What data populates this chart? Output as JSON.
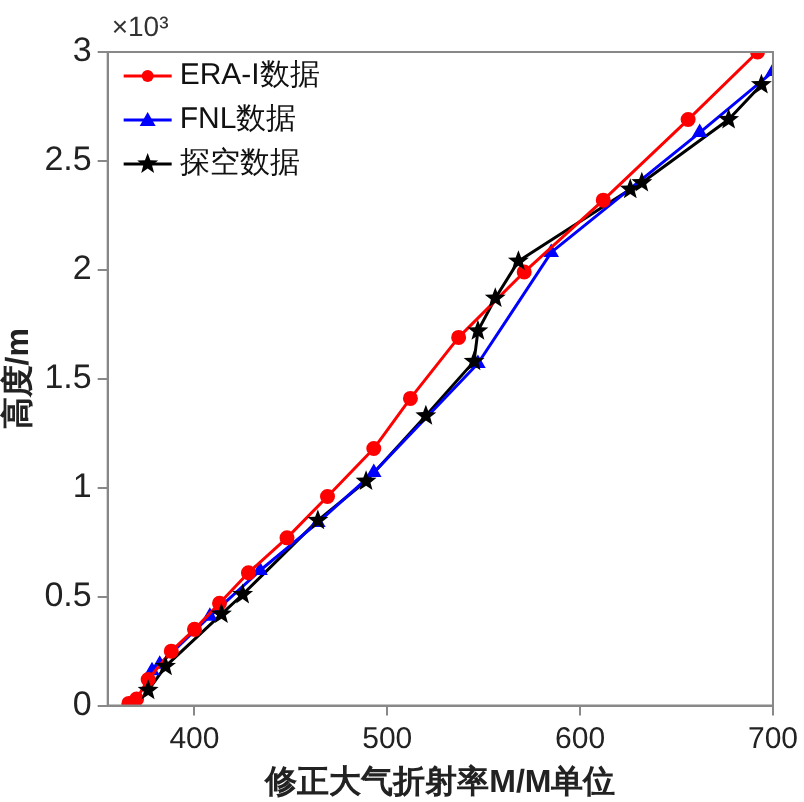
{
  "chart_data": {
    "type": "line",
    "xlabel": "修正大气折射率M/M单位",
    "ylabel": "高度/m",
    "annotations": [
      "×10³"
    ],
    "xlim": [
      355,
      700
    ],
    "xticks": [
      400,
      500,
      600,
      700
    ],
    "ylim": [
      0,
      3
    ],
    "yticks": [
      0,
      0.5,
      1,
      1.5,
      2,
      2.5,
      3
    ],
    "grid": false,
    "legend": "top left",
    "line_style": "solid",
    "series": [
      {
        "name": "ERA-I数据",
        "color": "#ff0000",
        "marker": "circle",
        "x": [
          366,
          370,
          376,
          388,
          400,
          413,
          428,
          448,
          469,
          493,
          512,
          537,
          571,
          612,
          656,
          692
        ],
        "values": [
          0.01,
          0.03,
          0.12,
          0.25,
          0.35,
          0.47,
          0.61,
          0.77,
          0.96,
          1.18,
          1.41,
          1.69,
          1.99,
          2.32,
          2.69,
          3
        ]
      },
      {
        "name": "FNL数据",
        "color": "#0000ff",
        "marker": "triangle",
        "x": [
          378,
          382,
          408,
          434,
          464,
          493,
          547,
          585,
          662,
          700
        ],
        "values": [
          0.16,
          0.19,
          0.41,
          0.62,
          0.84,
          1.07,
          1.57,
          2.08,
          2.63,
          2.91
        ]
      },
      {
        "name": "探空数据",
        "color": "#000000",
        "marker": "star",
        "x": [
          376,
          385,
          414,
          425,
          464,
          489,
          520,
          545,
          547,
          556,
          568,
          626,
          632,
          677,
          694
        ],
        "values": [
          0.07,
          0.18,
          0.42,
          0.51,
          0.85,
          1.03,
          1.33,
          1.58,
          1.72,
          1.87,
          2.04,
          2.37,
          2.4,
          2.69,
          2.85
        ]
      }
    ]
  }
}
